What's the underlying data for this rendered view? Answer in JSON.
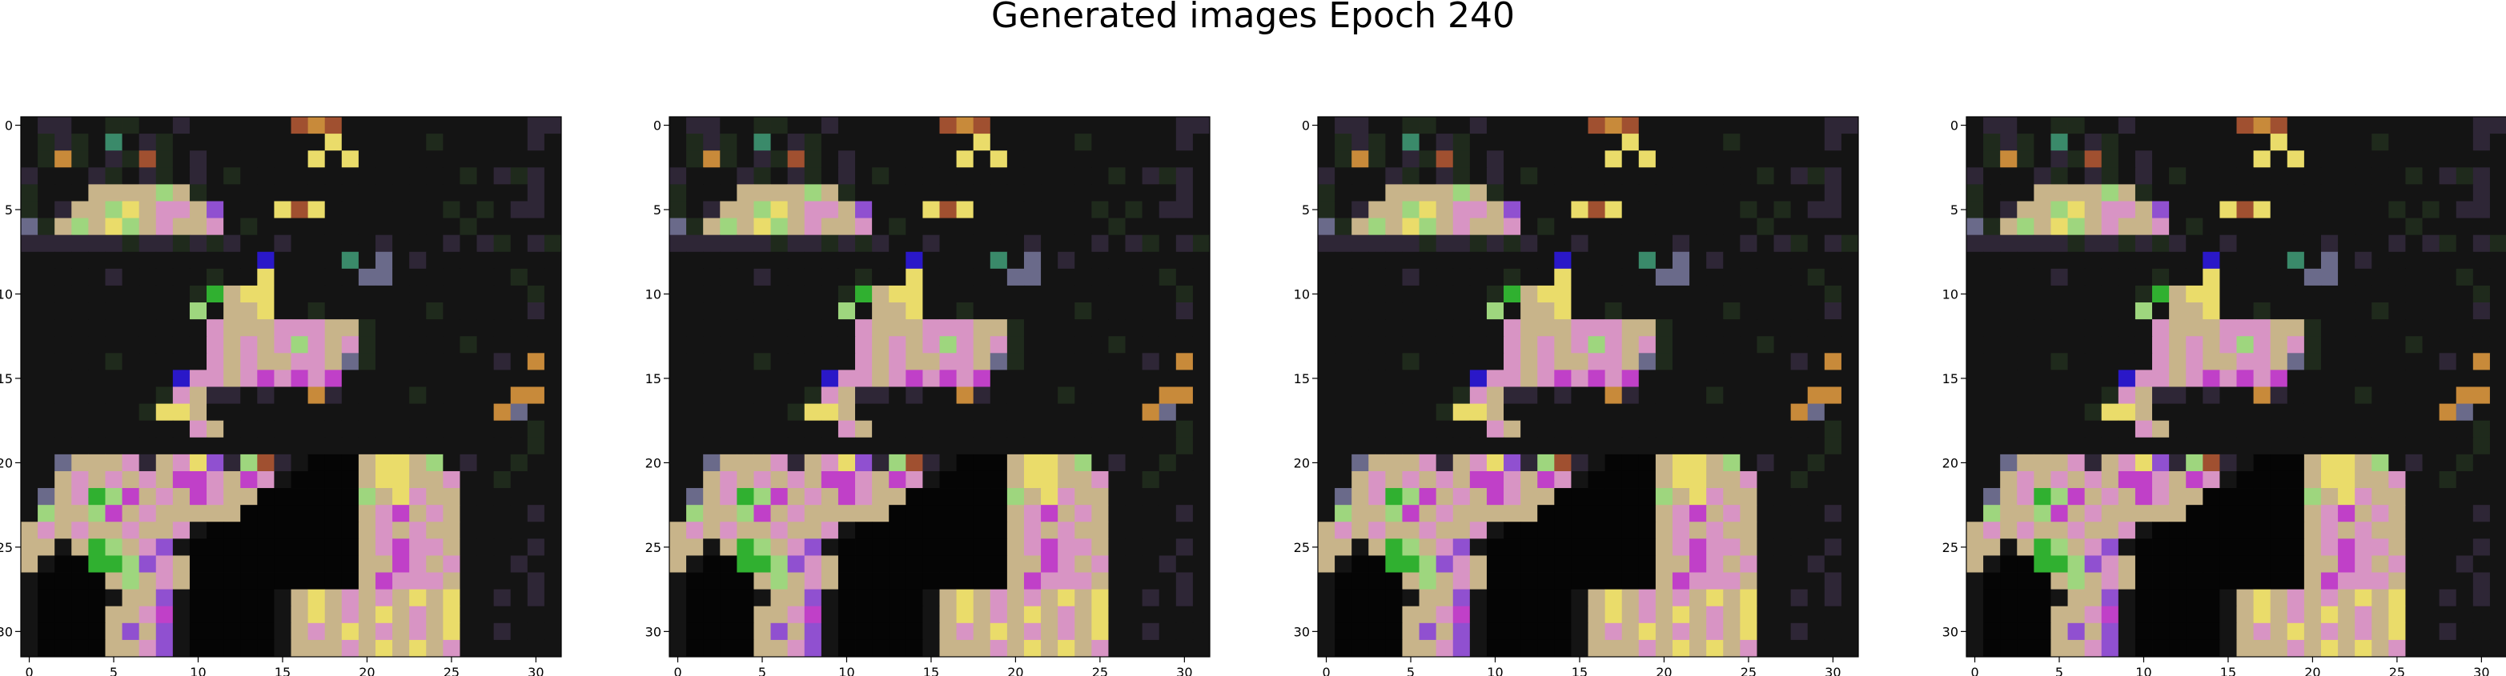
{
  "title": "Generated images Epoch 240",
  "chart_data": {
    "type": "heatmap",
    "title": "Generated images Epoch 240",
    "panels": 4,
    "grid_size": [
      32,
      32
    ],
    "xlim": [
      -0.5,
      31.5
    ],
    "ylim": [
      31.5,
      -0.5
    ],
    "x_ticks": [
      0,
      5,
      10,
      15,
      20,
      25,
      30
    ],
    "y_ticks": [
      0,
      5,
      10,
      15,
      20,
      25,
      30
    ],
    "x_tick_labels": [
      "0",
      "5",
      "10",
      "15",
      "20",
      "25",
      "30"
    ],
    "y_tick_labels": [
      "0",
      "5",
      "10",
      "15",
      "20",
      "25",
      "30"
    ],
    "palette": {
      "K": "#050505",
      "d": "#141414",
      "g": "#1f2a1c",
      "m": "#2e2636",
      "L": "#c8b48a",
      "P": "#d894c4",
      "Y": "#eadc6a",
      "G": "#9ed67e",
      "M": "#c040c8",
      "V": "#9050d0",
      "B": "#2a18c8",
      "O": "#c88a3a",
      "T": "#3a8a6a",
      "E": "#30b030",
      "S": "#6a6a8a",
      "R": "#a05030"
    },
    "rows": [
      "dmmddggddmddddddRORdddddddddddmm",
      "dgmgdTdmgdddddddddYdddddgdddddmd",
      "dgOgdmgRgdmddddddYdYdddddddddddd",
      "mdddmgdmgdmdgdddddddddddddgdmgmd",
      "gdddLLLLGLgdddddddddddddddddddmd",
      "gdmLLGYLPPLVdddYRYdddddddgdgdmmd",
      "SgLGLYGLPLLPdgddddddddddddgddddd",
      "mmmmmmgmmgmgmddmdddddmdddmdmgdmg",
      "ddddddddddddddBddddTdSdmdddddddd",
      "dddddmdddddgddYdddddSSdddddddgdd",
      "ddddddddddgELYYdddddddddddddddgd",
      "ddddddddddGdLLYddgddddddgdddddmd",
      "dddddddddddPLLLPPPLLgddddddddddd",
      "dddddddddddPLPLPGPLPgdddddgddddd",
      "dddddgdddddPLPLLPPLSgdddddddmdOd",
      "dddddddddBPPLPMPMPMddddddddddddd",
      "ddddddddgPLmmdmddOmddddgdddddOOd",
      "dddddddgYYLdddddddddddddddddOSdd",
      "ddddddddddPLddddddddddddddddddgd",
      "ddddddddddddddddddddddddddddddgd",
      "ddSLLLPmLPYVmGRmdKKKLYYLGdmddgdd",
      "ddLPLPLPLMMPLMPdKKKKLYYLLPddgddd",
      "dSLPEGMLPLMPLLKKKKKKGLYPLLdddddd",
      "dGLLGMLPLLLLLKKKKKKKLPMLPLddddmd",
      "LPLPLLPLLPdKKKKKKKKKLPLPLLdddddd",
      "LLdLEGLPVdKKKKKKKKKKLPMPPLddddmd",
      "LdKKEEGVPLKKKKKKKKKKLLMPLPdddmdd",
      "dKKKKLGLPLKKKKKKKKKKLMPPPLddddmd",
      "dKKKKdLLVdKKKKKdLYLPLPLYLYddmdmd",
      "dKKKKLLPMdKKKKKdLYLPLYLPLYdddddd",
      "dKKKKLVLVdKKKKKdLPLYLPLPLYddmddd",
      "dKKKKLLPVdKKKKKdLLLPLYLYLPdddddd"
    ]
  }
}
